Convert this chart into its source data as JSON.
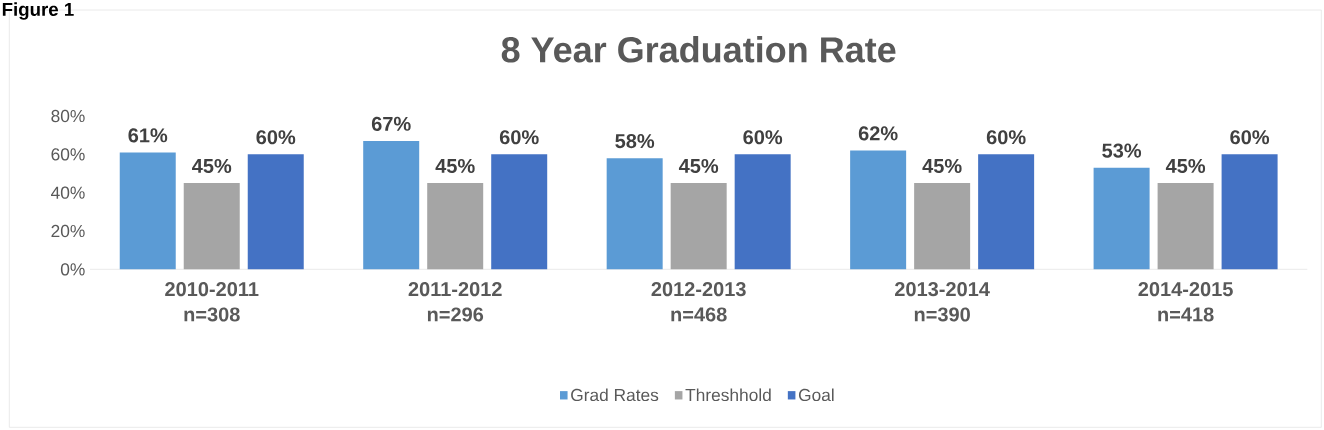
{
  "chart_data": {
    "type": "bar",
    "title": "8 Year Graduation Rate",
    "annotations": [
      "Figure 1"
    ],
    "categories": [
      "2010-2011 n=308",
      "2011-2012 n=296",
      "2012-2013 n=468",
      "2013-2014 n=390",
      "2014-2015 n=418"
    ],
    "series": [
      {
        "name": "Grad Rates",
        "color": "#5b9bd5",
        "values": [
          61,
          67,
          58,
          62,
          53
        ],
        "value_labels": [
          "61%",
          "67%",
          "58%",
          "62%",
          "53%"
        ]
      },
      {
        "name": "Threshhold",
        "color": "#a5a5a5",
        "values": [
          45,
          45,
          45,
          45,
          45
        ],
        "value_labels": [
          "45%",
          "45%",
          "45%",
          "45%",
          "45%"
        ]
      },
      {
        "name": "Goal",
        "color": "#4472c4",
        "values": [
          60,
          60,
          60,
          60,
          60
        ],
        "value_labels": [
          "60%",
          "60%",
          "60%",
          "60%",
          "60%"
        ]
      }
    ],
    "ylim": [
      0,
      80
    ],
    "yticks": [
      {
        "value": 0,
        "label": "0%"
      },
      {
        "value": 20,
        "label": "20%"
      },
      {
        "value": 40,
        "label": "40%"
      },
      {
        "value": 60,
        "label": "60%"
      },
      {
        "value": 80,
        "label": "80%"
      }
    ],
    "legend": "bottom"
  }
}
